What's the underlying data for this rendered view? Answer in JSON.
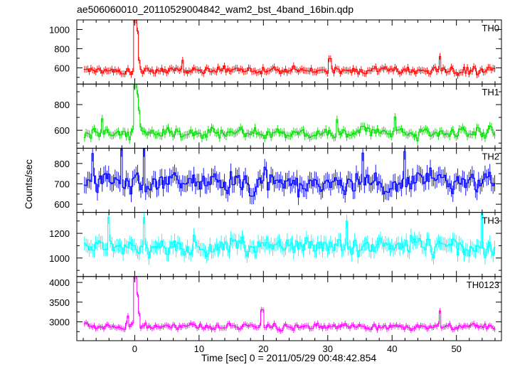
{
  "title": "ae506060010_20110529004842_wam2_bst_4band_16bin.qdp",
  "xlabel": "Time [sec] 0 = 2011/05/29 00:48:42.854",
  "ylabel": "Counts/sec",
  "chart_data": {
    "type": "line",
    "title": "ae506060010_20110529004842_wam2_bst_4band_16bin.qdp",
    "xlabel": "Time [sec] 0 = 2011/05/29 00:48:42.854",
    "ylabel": "Counts/sec",
    "xlim": [
      -9,
      57
    ],
    "xticks": [
      0,
      10,
      20,
      30,
      40,
      50
    ],
    "x_minor_step": 2,
    "grid": false,
    "errorbars": true,
    "panels": [
      {
        "name": "TH0",
        "color": "#ff0000",
        "ylim": [
          430,
          1100
        ],
        "yticks": [
          600,
          800,
          1000
        ],
        "base": 575,
        "noise": 38,
        "errbar": 35,
        "features": [
          {
            "t": 0.1,
            "peak": 1100
          },
          {
            "t": 0.4,
            "peak": 990
          },
          {
            "t": 0.7,
            "peak": 680
          },
          {
            "t": 47.5,
            "peak": 720
          },
          {
            "t": 30.3,
            "peak": 690
          },
          {
            "t": 7.5,
            "peak": 680
          }
        ]
      },
      {
        "name": "TH1",
        "color": "#00dd00",
        "ylim": [
          460,
          960
        ],
        "yticks": [
          600,
          800
        ],
        "base": 580,
        "noise": 40,
        "errbar": 30,
        "features": [
          {
            "t": 0.1,
            "peak": 960
          },
          {
            "t": 0.4,
            "peak": 880
          },
          {
            "t": 0.7,
            "peak": 760
          },
          {
            "t": -5,
            "peak": 690
          },
          {
            "t": 40.5,
            "peak": 700
          },
          {
            "t": 31.5,
            "peak": 690
          }
        ]
      },
      {
        "name": "TH2",
        "color": "#0000ff",
        "ylim": [
          560,
          875
        ],
        "yticks": [
          600,
          700,
          800
        ],
        "base": 710,
        "noise": 48,
        "errbar": 40,
        "features": [
          {
            "t": -6.5,
            "peak": 855
          },
          {
            "t": -2,
            "peak": 870
          },
          {
            "t": 1.5,
            "peak": 870
          },
          {
            "t": 35.5,
            "peak": 860
          },
          {
            "t": 42,
            "peak": 865
          }
        ]
      },
      {
        "name": "TH3",
        "color": "#00ffff",
        "ylim": [
          850,
          1370
        ],
        "yticks": [
          1000,
          1200
        ],
        "base": 1100,
        "noise": 70,
        "errbar": 55,
        "features": [
          {
            "t": -4,
            "peak": 1340
          },
          {
            "t": 1.5,
            "peak": 1340
          },
          {
            "t": 33,
            "peak": 1300
          },
          {
            "t": 54,
            "peak": 1350
          },
          {
            "t": 20.5,
            "peak": 880
          }
        ]
      },
      {
        "name": "TH0123",
        "color": "#ff00ff",
        "ylim": [
          2520,
          4150
        ],
        "yticks": [
          3000,
          3500,
          4000
        ],
        "base": 2880,
        "noise": 75,
        "errbar": 70,
        "features": [
          {
            "t": 0.1,
            "peak": 4150
          },
          {
            "t": 0.4,
            "peak": 3700
          },
          {
            "t": 0.7,
            "peak": 3200
          },
          {
            "t": 19.8,
            "peak": 3300
          },
          {
            "t": 47.5,
            "peak": 3280
          },
          {
            "t": -1,
            "peak": 3150
          }
        ]
      }
    ],
    "bin_width": 0.25
  }
}
